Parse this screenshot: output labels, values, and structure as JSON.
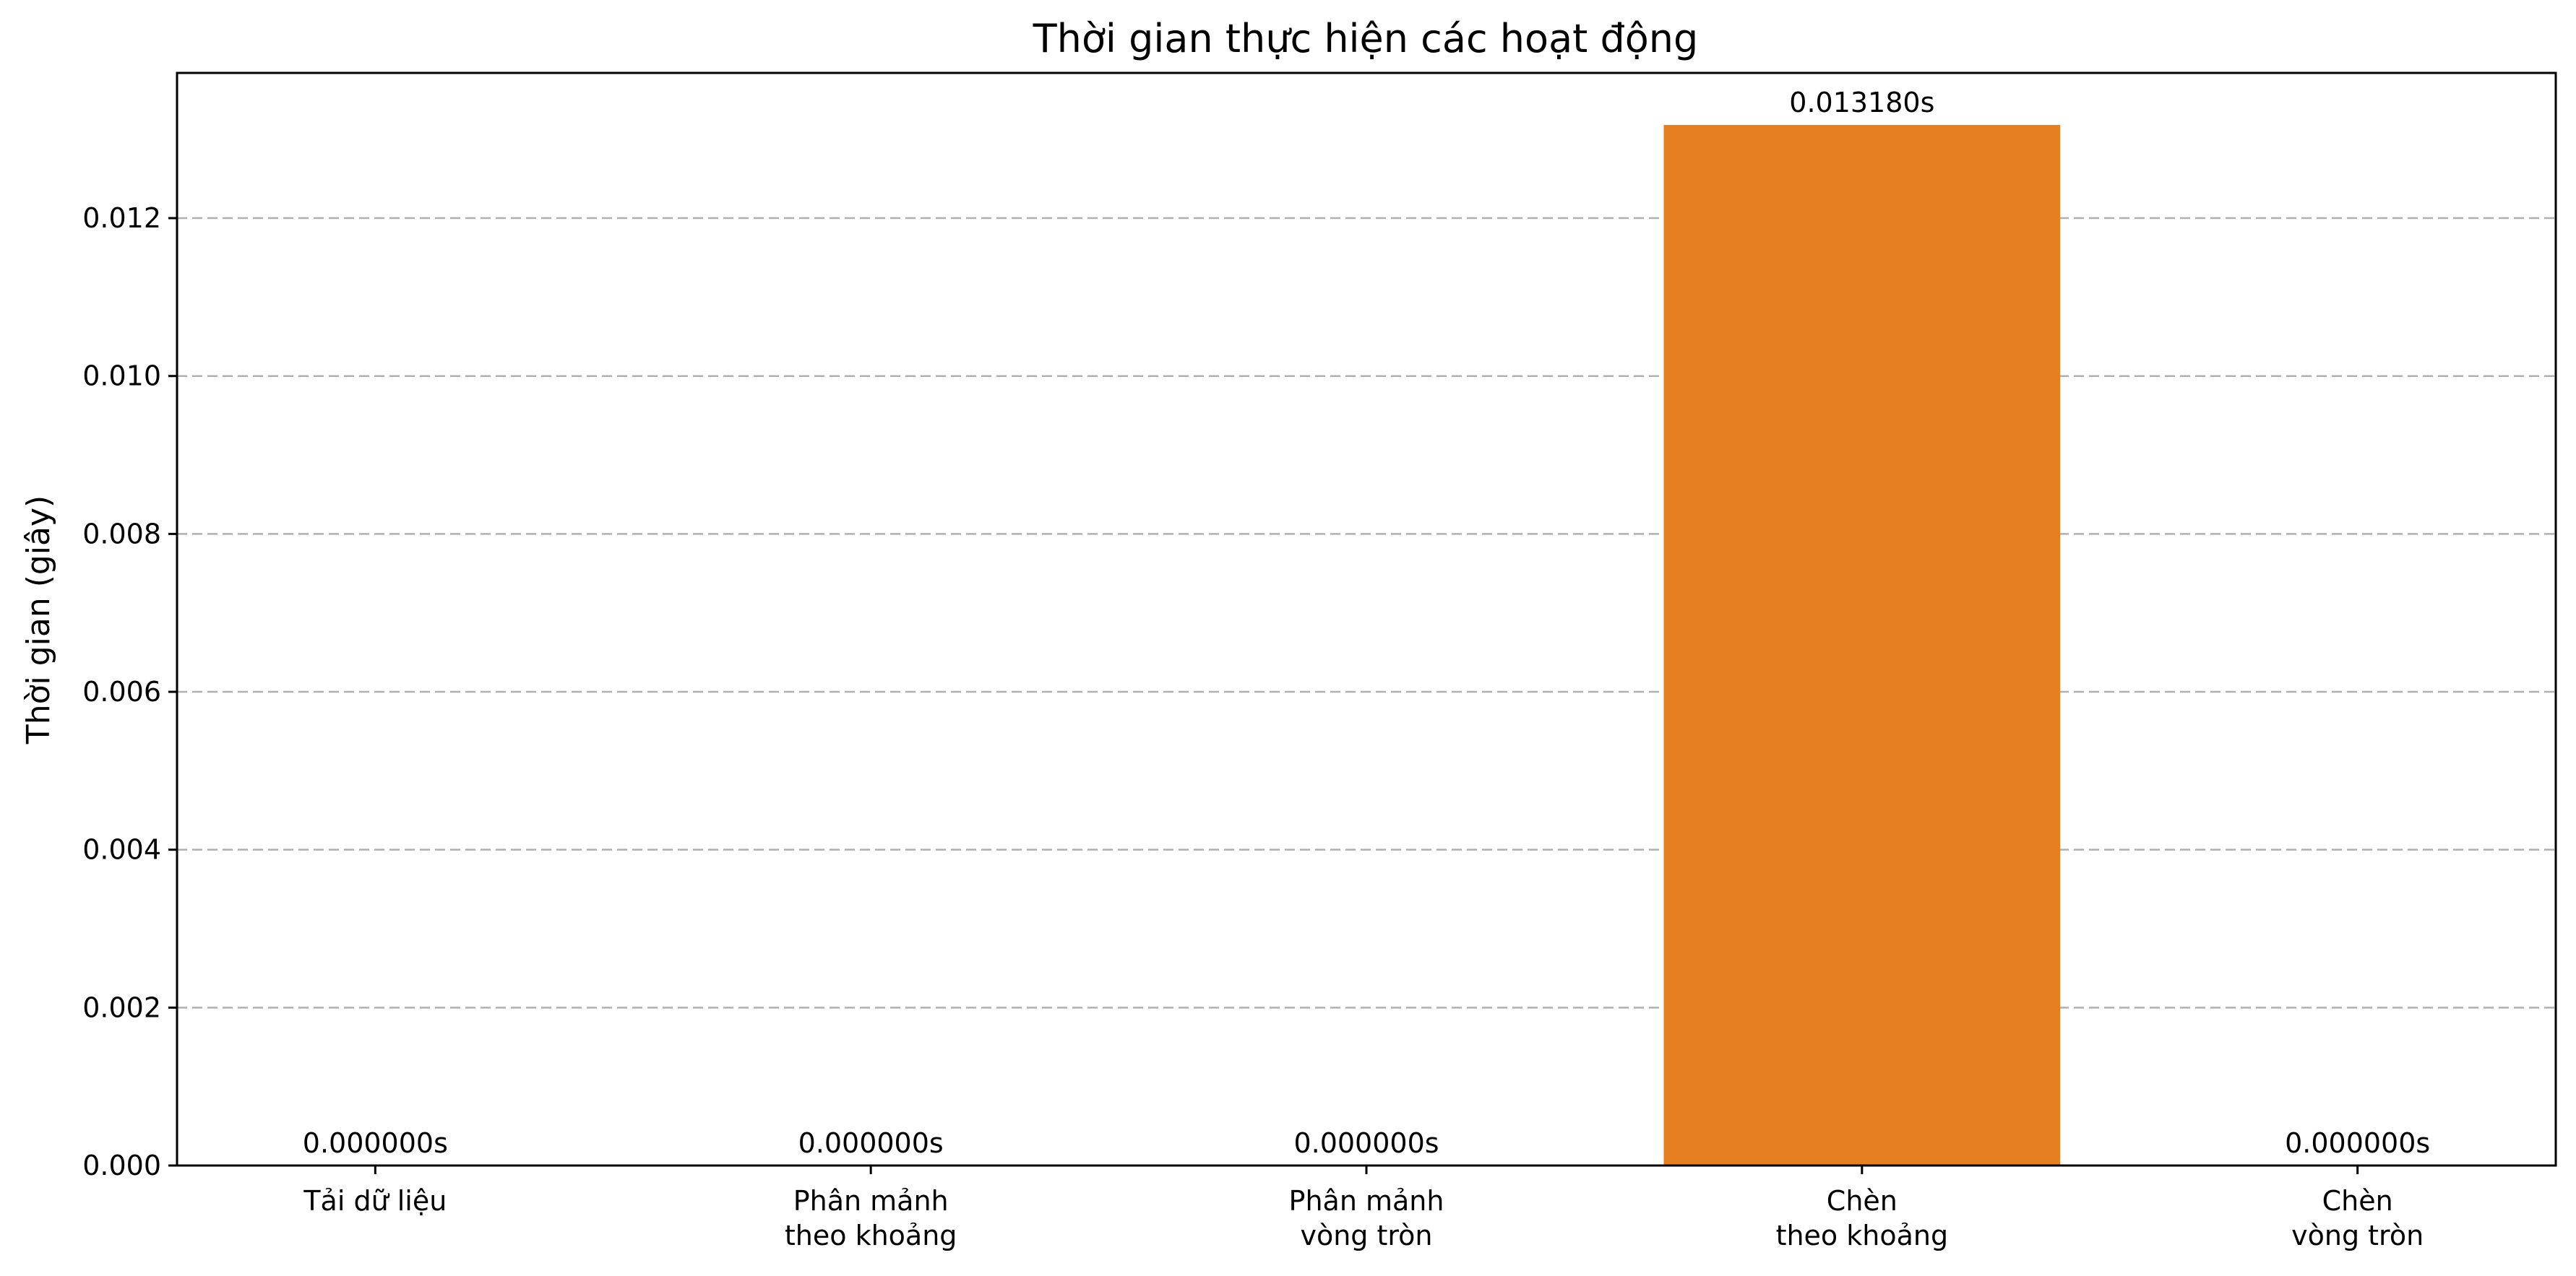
{
  "chart_data": {
    "type": "bar",
    "title": "Thời gian thực hiện các hoạt động",
    "xlabel": "",
    "ylabel": "Thời gian (giây)",
    "categories": [
      [
        "Tải dữ liệu"
      ],
      [
        "Phân mảnh",
        "theo khoảng"
      ],
      [
        "Phân mảnh",
        "vòng tròn"
      ],
      [
        "Chèn",
        "theo khoảng"
      ],
      [
        "Chèn",
        "vòng tròn"
      ]
    ],
    "values": [
      0.0,
      0.0,
      0.0,
      0.01318,
      0.0
    ],
    "data_labels": [
      "0.000000s",
      "0.000000s",
      "0.000000s",
      "0.013180s",
      "0.000000s"
    ],
    "ylim": [
      0,
      0.013839
    ],
    "yticks": [
      0.0,
      0.002,
      0.004,
      0.006,
      0.008,
      0.01,
      0.012
    ],
    "ytick_labels": [
      "0.000",
      "0.002",
      "0.004",
      "0.006",
      "0.008",
      "0.010",
      "0.012"
    ],
    "bar_color": "#e67e22",
    "grid": "y-dashed",
    "legend": "none"
  }
}
